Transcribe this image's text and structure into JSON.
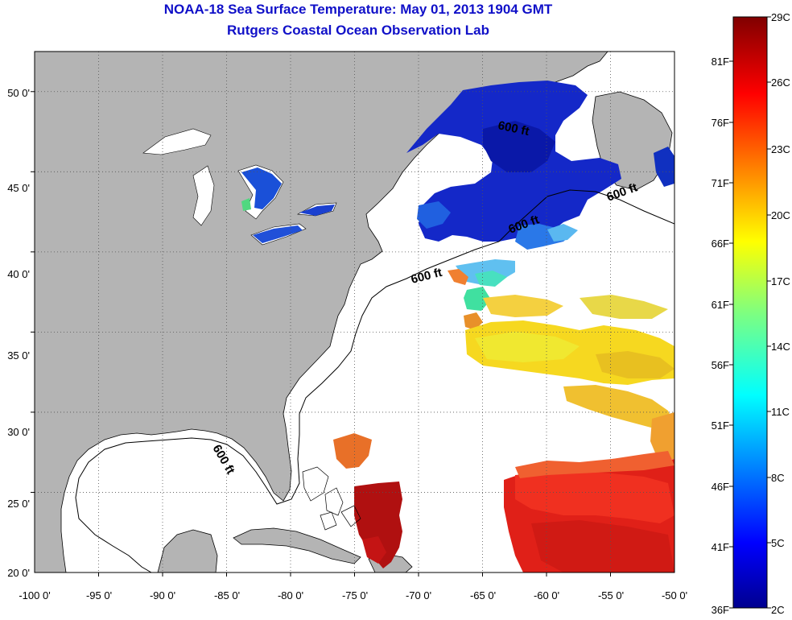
{
  "title": {
    "line1": "NOAA-18 Sea Surface Temperature:  May 01, 2013 1904 GMT",
    "line2": "Rutgers Coastal Ocean Observation Lab"
  },
  "map": {
    "lon_labels": [
      "-100 0'",
      "-95 0'",
      "-90 0'",
      "-85 0'",
      "-80 0'",
      "-75 0'",
      "-70 0'",
      "-65 0'",
      "-60 0'",
      "-55 0'",
      "-50 0'"
    ],
    "lat_labels": [
      "50 0'",
      "45 0'",
      "40 0'",
      "35 0'",
      "30 0'",
      "25 0'",
      "20 0'"
    ],
    "lon_range": [
      -100,
      -50
    ],
    "lat_range": [
      20,
      52.5
    ],
    "isobath_label": "600 ft",
    "colors": {
      "land": "#b4b4b4",
      "ocean": "#ffffff",
      "grid": "#555555"
    }
  },
  "colorbar": {
    "celsius_labels": [
      "29C",
      "26C",
      "23C",
      "20C",
      "17C",
      "14C",
      "11C",
      "8C",
      "5C",
      "2C"
    ],
    "fahrenheit_labels": [
      "81F",
      "76F",
      "71F",
      "66F",
      "61F",
      "56F",
      "51F",
      "46F",
      "41F",
      "36F"
    ],
    "colormap": "jet"
  }
}
